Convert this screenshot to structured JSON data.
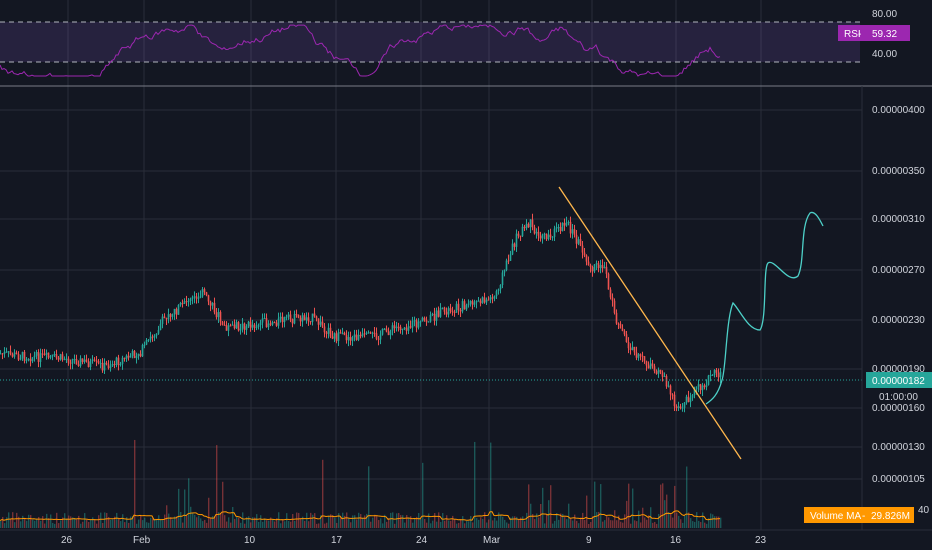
{
  "rsi_pane": {
    "name_label": "RSI",
    "value_label": "59.32",
    "ticks": [
      "80.00",
      "40.00"
    ]
  },
  "price_axis": {
    "ticks": [
      "0.00000400",
      "0.00000350",
      "0.00000310",
      "0.00000270",
      "0.00000230",
      "0.00000190",
      "0.00000160",
      "0.00000130",
      "0.00000105"
    ],
    "last_price_label": "0.00000182",
    "countdown_label": "01:00:00"
  },
  "time_axis": {
    "ticks": [
      "26",
      "Feb",
      "10",
      "17",
      "24",
      "Mar",
      "9",
      "16",
      "23"
    ]
  },
  "volume": {
    "ma_name": "Volume MA",
    "ma_value": "29.826M",
    "partial_tick": "40"
  },
  "colors": {
    "background": "#131722",
    "up": "#26a69a",
    "down": "#ef5350",
    "rsi_line": "#9c27b0",
    "rsi_band": "#7e57c2",
    "trendline": "#ffb74d",
    "projection": "#4dd0c8",
    "volume_ma": "#ff9800",
    "last_price": "#26a69a"
  },
  "chart_data": {
    "type": "line",
    "series": [
      {
        "role": "price_path",
        "x": [
          "Jan 19",
          "Jan 22",
          "Jan 26",
          "Jan 29",
          "Feb 1",
          "Feb 3",
          "Feb 5",
          "Feb 6",
          "Feb 8",
          "Feb 10",
          "Feb 13",
          "Feb 15",
          "Feb 17",
          "Feb 20",
          "Feb 22",
          "Feb 24",
          "Feb 26",
          "Feb 28",
          "Mar 1",
          "Mar 3",
          "Mar 4",
          "Mar 5",
          "Mar 6",
          "Mar 7",
          "Mar 8",
          "Mar 9",
          "Mar 10",
          "Mar 11",
          "Mar 12",
          "Mar 13",
          "Mar 14",
          "Mar 15",
          "Mar 16",
          "Mar 17",
          "Mar 18",
          "Mar 19"
        ],
        "y": [
          1.95e-06,
          1.92e-06,
          1.9e-06,
          1.85e-06,
          1.95e-06,
          2.2e-06,
          2.32e-06,
          2.4e-06,
          2.12e-06,
          2.14e-06,
          2.18e-06,
          2.2e-06,
          2.05e-06,
          2.05e-06,
          2.12e-06,
          2.15e-06,
          2.25e-06,
          2.3e-06,
          2.35e-06,
          2.95e-06,
          3.05e-06,
          2.9e-06,
          2.95e-06,
          3.05e-06,
          2.85e-06,
          2.6e-06,
          2.65e-06,
          2.2e-06,
          2e-06,
          1.9e-06,
          1.85e-06,
          1.78e-06,
          1.6e-06,
          1.65e-06,
          1.72e-06,
          1.8e-06
        ]
      },
      {
        "role": "resistance_trendline",
        "x": [
          "Mar 6",
          "Mar 22"
        ],
        "y": [
          3.25e-06,
          1.2e-06
        ]
      },
      {
        "role": "projection",
        "x": [
          "Mar 19",
          "Mar 21",
          "Mar 22",
          "Mar 23",
          "Mar 24",
          "Mar 26",
          "Mar 27",
          "Mar 28"
        ],
        "y": [
          1.72e-06,
          2.35e-06,
          2.25e-06,
          2.48e-06,
          2.65e-06,
          2.75e-06,
          3.15e-06,
          3.05e-06
        ]
      }
    ],
    "rsi": {
      "upper": 70,
      "lower": 30,
      "last": 59.32
    },
    "last_price": 1.82e-06,
    "y_scale": "log"
  }
}
